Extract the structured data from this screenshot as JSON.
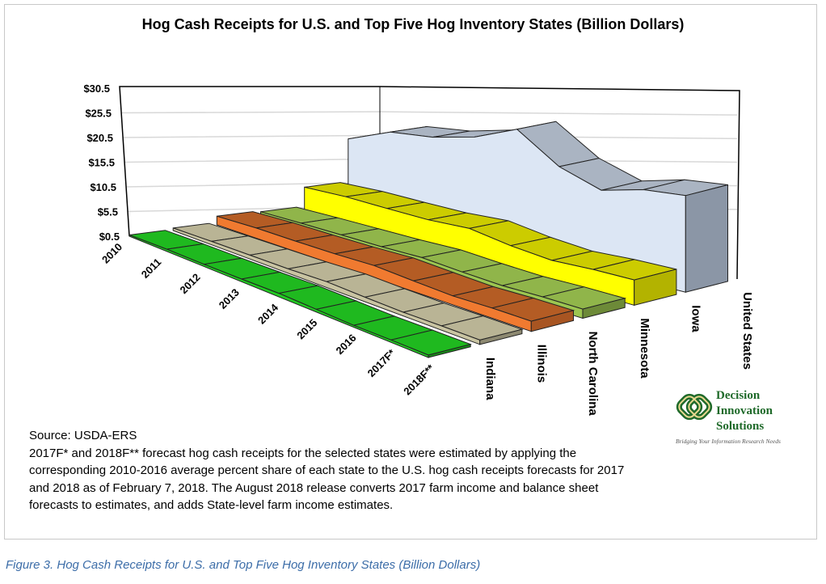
{
  "chart_data": {
    "type": "area",
    "subtype": "3d-area",
    "title": "Hog Cash Receipts for U.S. and Top Five Hog Inventory States (Billion Dollars)",
    "categories": [
      "2010",
      "2011",
      "2012",
      "2013",
      "2014",
      "2015",
      "2016",
      "2017F*",
      "2018F**"
    ],
    "yticks": [
      "$0.5",
      "$5.5",
      "$10.5",
      "$15.5",
      "$20.5",
      "$25.5",
      "$30.5"
    ],
    "ylim": [
      0.5,
      30.5
    ],
    "grid": true,
    "series": [
      {
        "name": "Indiana",
        "color": "#22c922",
        "values": [
          0.8,
          1.0,
          1.0,
          1.1,
          1.3,
          1.1,
          0.9,
          1.0,
          1.0
        ]
      },
      {
        "name": "Illinois",
        "color": "#c9c4a2",
        "values": [
          1.1,
          1.3,
          1.4,
          1.5,
          1.8,
          1.5,
          1.3,
          1.4,
          1.4
        ]
      },
      {
        "name": "North Carolina",
        "color": "#f07a30",
        "values": [
          2.6,
          2.9,
          2.9,
          3.0,
          3.3,
          2.8,
          2.4,
          2.6,
          2.6
        ]
      },
      {
        "name": "Minnesota",
        "color": "#9cc550",
        "values": [
          2.3,
          2.5,
          2.6,
          2.7,
          3.0,
          2.5,
          2.2,
          2.4,
          2.4
        ]
      },
      {
        "name": "Iowa",
        "color": "#ffff00",
        "values": [
          6.9,
          7.2,
          7.0,
          6.9,
          7.4,
          6.0,
          5.2,
          5.6,
          5.7
        ]
      },
      {
        "name": "United States",
        "color": "#dce6f4",
        "values": [
          17.2,
          21.0,
          21.8,
          23.8,
          27.4,
          21.0,
          17.8,
          19.8,
          20.4
        ]
      }
    ]
  },
  "source_lines": [
    "Source: USDA-ERS",
    "2017F* and 2018F** forecast hog cash receipts for the selected states were estimated by applying the corresponding 2010-2016 average percent share of each state to the U.S. hog cash receipts forecasts for 2017 and 2018 as of February 7, 2018. The August 2018 release converts 2017 farm income and balance sheet forecasts to estimates, and adds State-level farm income estimates."
  ],
  "logo": {
    "name_lines": [
      "Decision",
      "Innovation",
      "Solutions"
    ],
    "tagline": "Bridging Your Information Research Needs"
  },
  "caption": "Figure 3. Hog Cash Receipts for U.S. and Top Five Hog Inventory States (Billion Dollars)"
}
